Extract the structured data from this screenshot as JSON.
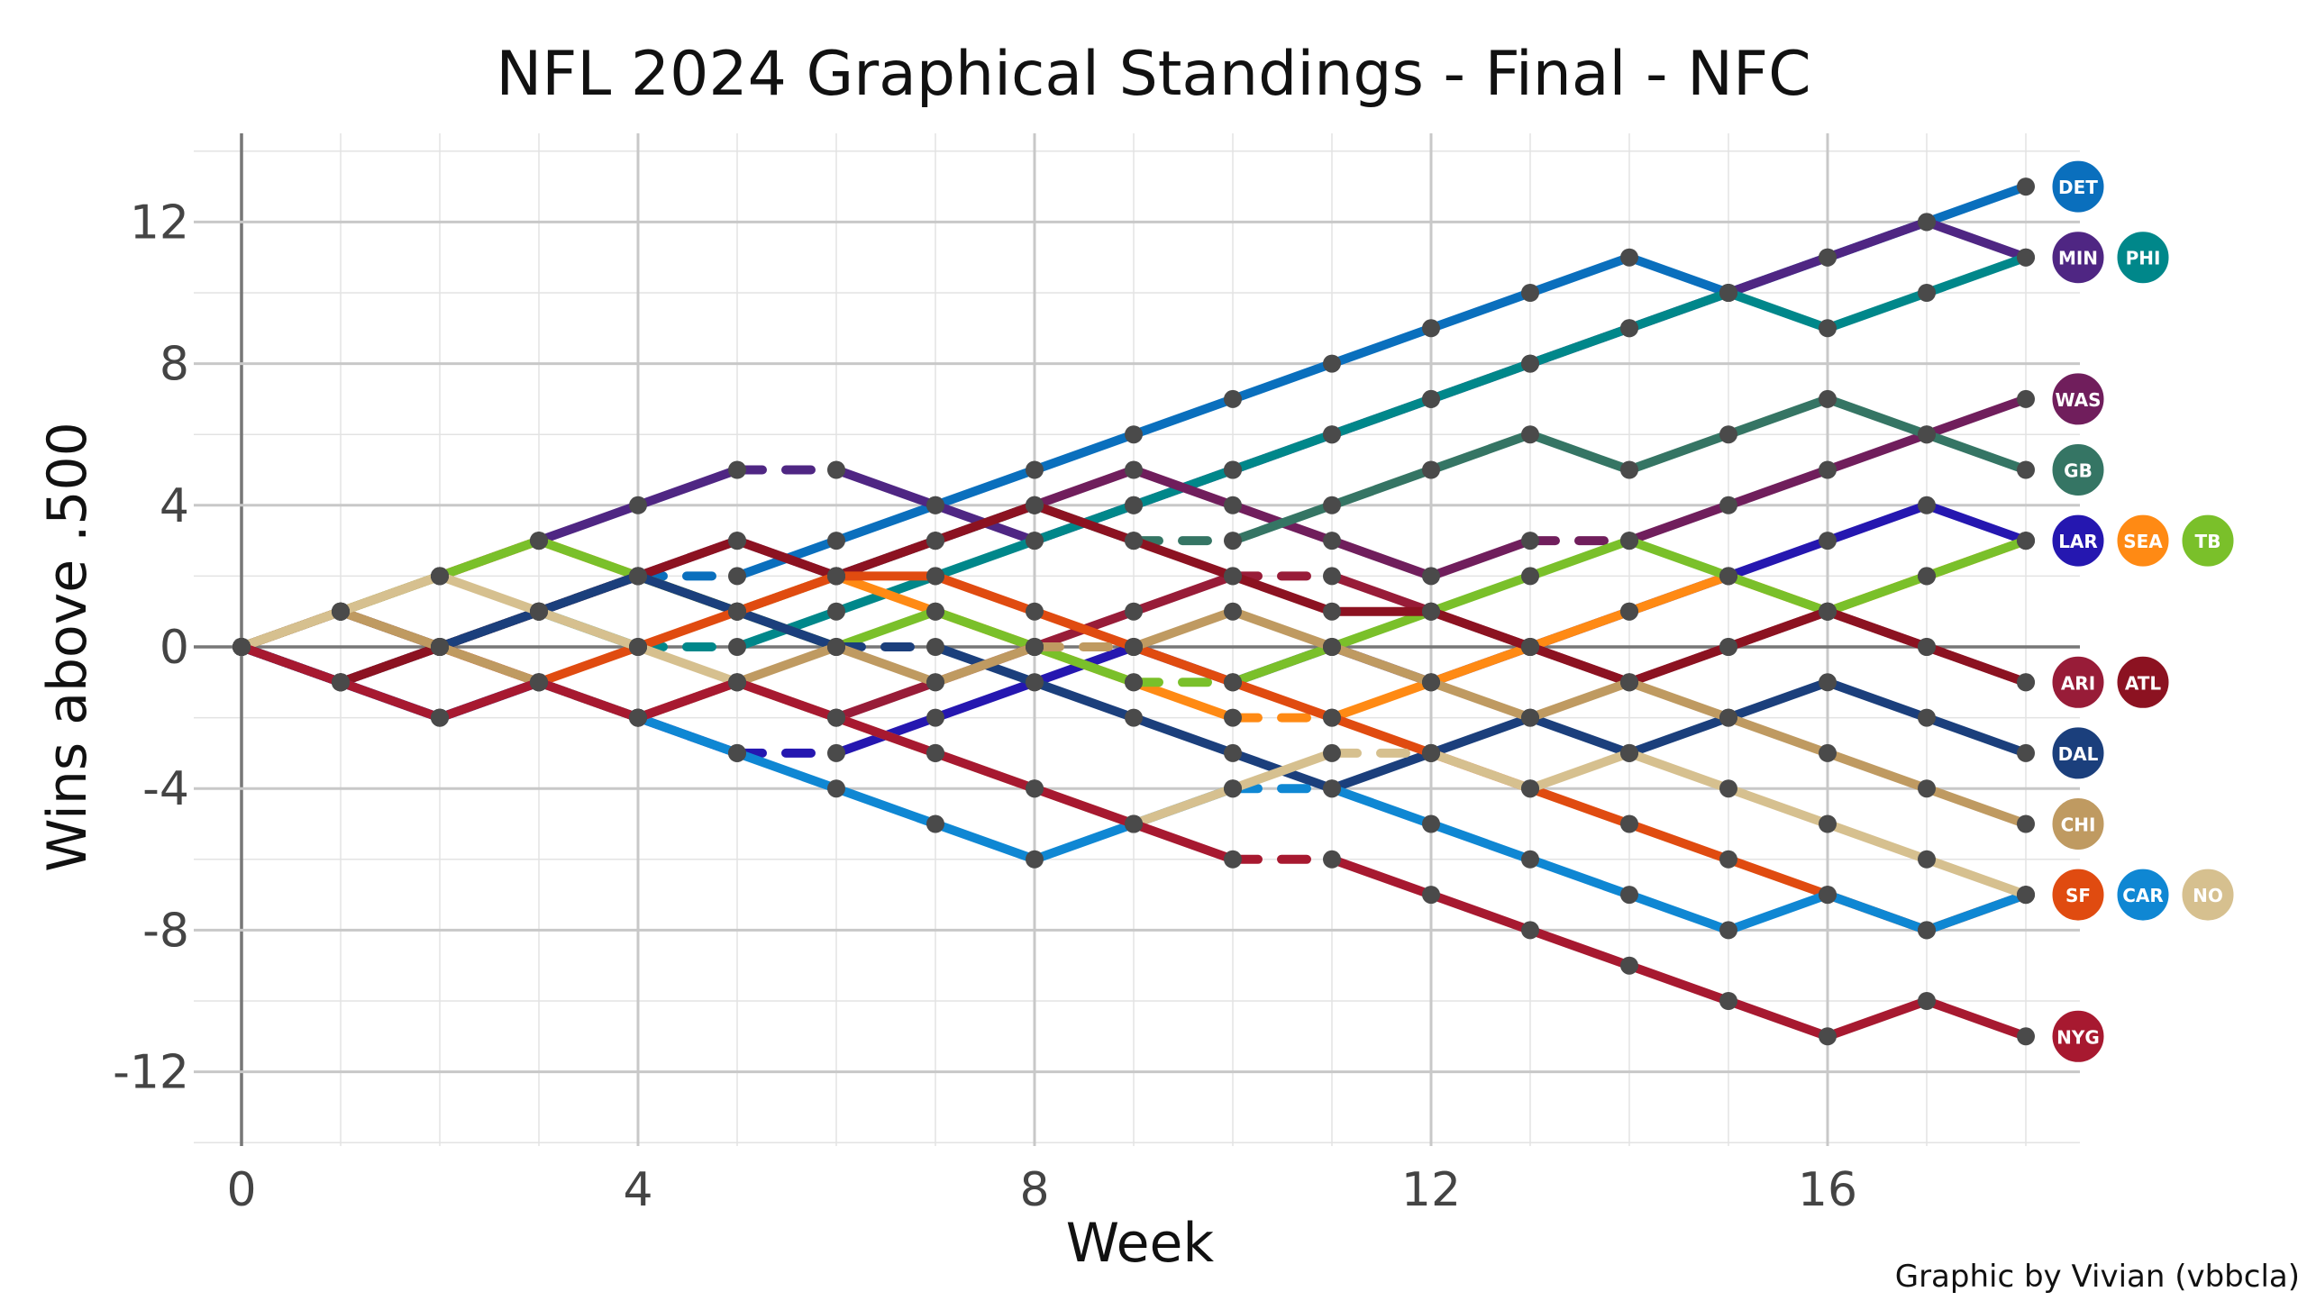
{
  "chart_data": {
    "type": "line",
    "title": "NFL 2024 Graphical Standings - Final - NFC",
    "xlabel": "Week",
    "ylabel": "Wins above .500",
    "caption": "Graphic by Vivian (vbbcla)",
    "xlim": [
      0,
      18
    ],
    "ylim": [
      -14,
      14
    ],
    "x_ticks": [
      0,
      4,
      8,
      12,
      16
    ],
    "y_ticks": [
      -12,
      -8,
      -4,
      0,
      4,
      8,
      12
    ],
    "x_tick_labels": [
      "0",
      "4",
      "8",
      "12",
      "16"
    ],
    "y_tick_labels": [
      "-12",
      "-8",
      "-4",
      "0",
      "4",
      "8",
      "12"
    ],
    "grid": true,
    "legend": "team logos at line ends (right)",
    "dashed_segments_indicate": "bye week",
    "series": [
      {
        "name": "Lions",
        "logo_text": "DET",
        "color": "#0a6fbd",
        "weeks": [
          0,
          1,
          2,
          3,
          4,
          5,
          6,
          7,
          8,
          9,
          10,
          11,
          12,
          13,
          14,
          15,
          16,
          17,
          18
        ],
        "values": [
          0,
          -1,
          0,
          1,
          2,
          2,
          3,
          4,
          5,
          6,
          7,
          8,
          9,
          10,
          11,
          10,
          11,
          12,
          13
        ],
        "bye": 5
      },
      {
        "name": "Vikings",
        "logo_text": "MIN",
        "color": "#4f2683",
        "weeks": [
          0,
          1,
          2,
          3,
          4,
          5,
          6,
          7,
          8,
          9,
          10,
          11,
          12,
          13,
          14,
          15,
          16,
          17,
          18
        ],
        "values": [
          0,
          1,
          2,
          3,
          4,
          5,
          5,
          4,
          3,
          4,
          5,
          6,
          7,
          8,
          9,
          10,
          11,
          12,
          11
        ],
        "bye": 6
      },
      {
        "name": "Eagles",
        "logo_text": "PHI",
        "color": "#00878a",
        "weeks": [
          0,
          1,
          2,
          3,
          4,
          5,
          6,
          7,
          8,
          9,
          10,
          11,
          12,
          13,
          14,
          15,
          16,
          17,
          18
        ],
        "values": [
          0,
          1,
          0,
          1,
          0,
          0,
          1,
          2,
          3,
          4,
          5,
          6,
          7,
          8,
          9,
          10,
          9,
          10,
          11
        ],
        "bye": 5
      },
      {
        "name": "Commanders",
        "logo_text": "WAS",
        "color": "#701e5c",
        "weeks": [
          0,
          1,
          2,
          3,
          4,
          5,
          6,
          7,
          8,
          9,
          10,
          11,
          12,
          13,
          14,
          15,
          16,
          17,
          18
        ],
        "values": [
          0,
          -1,
          0,
          1,
          2,
          3,
          2,
          3,
          4,
          5,
          4,
          3,
          2,
          3,
          3,
          4,
          5,
          6,
          7
        ],
        "bye": 14
      },
      {
        "name": "Packers",
        "logo_text": "GB",
        "color": "#357564",
        "weeks": [
          0,
          1,
          2,
          3,
          4,
          5,
          6,
          7,
          8,
          9,
          10,
          11,
          12,
          13,
          14,
          15,
          16,
          17,
          18
        ],
        "values": [
          0,
          -1,
          0,
          1,
          2,
          1,
          2,
          3,
          4,
          3,
          3,
          4,
          5,
          6,
          5,
          6,
          7,
          6,
          5
        ],
        "bye": 10
      },
      {
        "name": "Rams",
        "logo_text": "LAR",
        "color": "#2517b0",
        "weeks": [
          0,
          1,
          2,
          3,
          4,
          5,
          6,
          7,
          8,
          9,
          10,
          11,
          12,
          13,
          14,
          15,
          16,
          17,
          18
        ],
        "values": [
          0,
          -1,
          -2,
          -1,
          -2,
          -3,
          -3,
          -2,
          -1,
          0,
          -1,
          0,
          -1,
          0,
          1,
          2,
          3,
          4,
          3
        ],
        "bye": 6
      },
      {
        "name": "Seahawks",
        "logo_text": "SEA",
        "color": "#ff8a14",
        "weeks": [
          0,
          1,
          2,
          3,
          4,
          5,
          6,
          7,
          8,
          9,
          10,
          11,
          12,
          13,
          14,
          15,
          16,
          17,
          18
        ],
        "values": [
          0,
          1,
          2,
          3,
          2,
          1,
          2,
          1,
          0,
          -1,
          -2,
          -2,
          -1,
          0,
          1,
          2,
          1,
          2,
          3
        ],
        "bye": 11
      },
      {
        "name": "Buccaneers",
        "logo_text": "TB",
        "color": "#7ac02a",
        "weeks": [
          0,
          1,
          2,
          3,
          4,
          5,
          6,
          7,
          8,
          9,
          10,
          11,
          12,
          13,
          14,
          15,
          16,
          17,
          18
        ],
        "values": [
          0,
          1,
          2,
          3,
          2,
          1,
          0,
          1,
          0,
          -1,
          -1,
          0,
          1,
          2,
          3,
          2,
          1,
          2,
          3
        ],
        "bye": 10
      },
      {
        "name": "Cardinals",
        "logo_text": "ARI",
        "color": "#981c38",
        "weeks": [
          0,
          1,
          2,
          3,
          4,
          5,
          6,
          7,
          8,
          9,
          10,
          11,
          12,
          13,
          14,
          15,
          16,
          17,
          18
        ],
        "values": [
          0,
          -1,
          0,
          -1,
          -2,
          -1,
          -2,
          -1,
          0,
          1,
          2,
          2,
          1,
          0,
          -1,
          0,
          1,
          0,
          -1
        ],
        "bye": 11
      },
      {
        "name": "Falcons",
        "logo_text": "ATL",
        "color": "#8c1221",
        "weeks": [
          0,
          1,
          2,
          3,
          4,
          5,
          6,
          7,
          8,
          9,
          10,
          11,
          12,
          13,
          14,
          15,
          16,
          17,
          18
        ],
        "values": [
          0,
          -1,
          0,
          1,
          2,
          3,
          2,
          3,
          4,
          3,
          2,
          1,
          1,
          0,
          -1,
          0,
          1,
          0,
          -1
        ],
        "bye": 11
      },
      {
        "name": "Cowboys",
        "logo_text": "DAL",
        "color": "#1b3f7c",
        "weeks": [
          0,
          1,
          2,
          3,
          4,
          5,
          6,
          7,
          8,
          9,
          10,
          11,
          12,
          13,
          14,
          15,
          16,
          17,
          18
        ],
        "values": [
          0,
          1,
          0,
          1,
          2,
          1,
          0,
          0,
          -1,
          -2,
          -3,
          -4,
          -3,
          -2,
          -3,
          -2,
          -1,
          -2,
          -3
        ],
        "bye": 7
      },
      {
        "name": "49ers",
        "logo_text": "SF",
        "color": "#e04b10",
        "weeks": [
          0,
          1,
          2,
          3,
          4,
          5,
          6,
          7,
          8,
          9,
          10,
          11,
          12,
          13,
          14,
          15,
          16,
          17,
          18
        ],
        "values": [
          0,
          1,
          0,
          -1,
          0,
          1,
          2,
          2,
          1,
          0,
          -1,
          -2,
          -3,
          -4,
          -5,
          -6,
          -7,
          -8,
          -7
        ],
        "bye": 9
      },
      {
        "name": "Panthers",
        "logo_text": "CAR",
        "color": "#0f87d3",
        "weeks": [
          0,
          1,
          2,
          3,
          4,
          5,
          6,
          7,
          8,
          9,
          10,
          11,
          12,
          13,
          14,
          15,
          16,
          17,
          18
        ],
        "values": [
          0,
          -1,
          -2,
          -1,
          -2,
          -3,
          -4,
          -5,
          -6,
          -5,
          -4,
          -4,
          -5,
          -6,
          -7,
          -8,
          -7,
          -8,
          -7
        ],
        "bye": 11
      },
      {
        "name": "Bears",
        "logo_text": "CHI",
        "color": "#bf9a61",
        "weeks": [
          0,
          1,
          2,
          3,
          4,
          5,
          6,
          7,
          8,
          9,
          10,
          11,
          12,
          13,
          14,
          15,
          16,
          17,
          18
        ],
        "values": [
          0,
          1,
          0,
          -1,
          -2,
          -1,
          0,
          -1,
          0,
          0,
          1,
          0,
          -1,
          -2,
          -1,
          -2,
          -3,
          -4,
          -5
        ],
        "bye": 9
      },
      {
        "name": "Saints",
        "logo_text": "NO",
        "color": "#d6c08f",
        "weeks": [
          0,
          1,
          2,
          3,
          4,
          5,
          6,
          7,
          8,
          9,
          10,
          11,
          12,
          13,
          14,
          15,
          16,
          17,
          18
        ],
        "values": [
          0,
          1,
          2,
          1,
          0,
          -1,
          -2,
          -3,
          -4,
          -5,
          -4,
          -3,
          -3,
          -4,
          -3,
          -4,
          -5,
          -6,
          -7
        ],
        "bye": 12
      },
      {
        "name": "Giants",
        "logo_text": "NYG",
        "color": "#a71930",
        "weeks": [
          0,
          1,
          2,
          3,
          4,
          5,
          6,
          7,
          8,
          9,
          10,
          11,
          12,
          13,
          14,
          15,
          16,
          17,
          18
        ],
        "values": [
          0,
          -1,
          -2,
          -1,
          -2,
          -1,
          -2,
          -3,
          -4,
          -5,
          -6,
          -6,
          -7,
          -8,
          -9,
          -10,
          -11,
          -10,
          -11
        ],
        "bye": 11
      }
    ]
  }
}
